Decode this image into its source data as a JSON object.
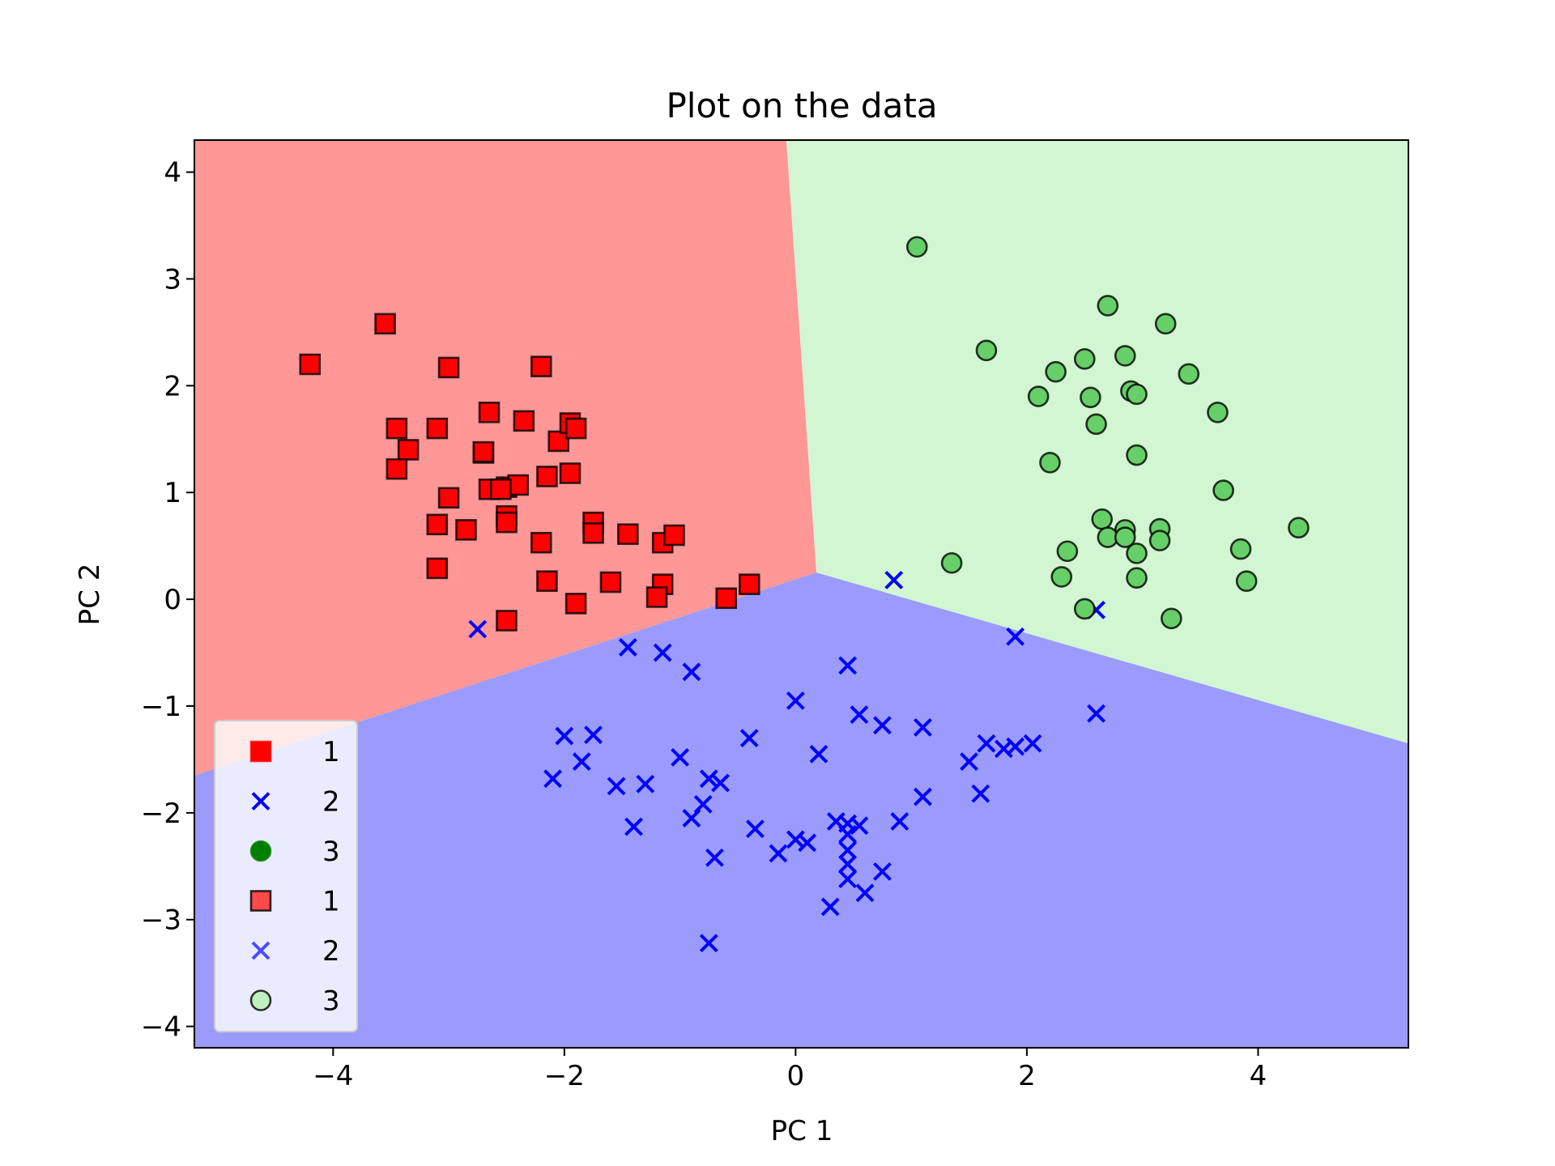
{
  "chart_data": {
    "type": "scatter",
    "title": "Plot on the data",
    "xlabel": "PC 1",
    "ylabel": "PC 2",
    "xlim": [
      -5.2,
      5.3
    ],
    "ylim": [
      -4.2,
      4.3
    ],
    "xticks": [
      -4,
      -2,
      0,
      2,
      4
    ],
    "yticks": [
      -4,
      -3,
      -2,
      -1,
      0,
      1,
      2,
      3,
      4
    ],
    "xtick_labels": [
      "−4",
      "−2",
      "0",
      "2",
      "4"
    ],
    "ytick_labels": [
      "−4",
      "−3",
      "−2",
      "−1",
      "0",
      "1",
      "2",
      "3",
      "4"
    ],
    "grid": false,
    "legend_position": "bottom-left",
    "decision_regions": {
      "boundary_point": [
        0.18,
        0.25
      ],
      "boundaries": [
        {
          "between": [
            "1",
            "2"
          ],
          "to": [
            -5.2,
            -1.65
          ]
        },
        {
          "between": [
            "1",
            "3"
          ],
          "to": [
            -0.08,
            4.3
          ]
        },
        {
          "between": [
            "2",
            "3"
          ],
          "to": [
            5.3,
            -1.35
          ]
        }
      ],
      "colors": {
        "1": "#ff9797",
        "2": "#9b9bfd",
        "3": "#d1f6d1"
      }
    },
    "series": [
      {
        "name": "1",
        "marker": "square",
        "color": "#ff0000",
        "points": [
          [
            -4.2,
            2.2
          ],
          [
            -3.55,
            2.58
          ],
          [
            -3.0,
            2.17
          ],
          [
            -2.2,
            2.18
          ],
          [
            -3.45,
            1.6
          ],
          [
            -3.1,
            1.6
          ],
          [
            -3.35,
            1.4
          ],
          [
            -3.45,
            1.22
          ],
          [
            -2.65,
            1.75
          ],
          [
            -2.35,
            1.67
          ],
          [
            -2.05,
            1.48
          ],
          [
            -1.95,
            1.65
          ],
          [
            -1.9,
            1.6
          ],
          [
            -2.7,
            1.37
          ],
          [
            -2.7,
            1.38
          ],
          [
            -2.15,
            1.15
          ],
          [
            -1.95,
            1.18
          ],
          [
            -2.65,
            1.03
          ],
          [
            -2.5,
            1.05
          ],
          [
            -2.4,
            1.07
          ],
          [
            -2.55,
            1.03
          ],
          [
            -3.0,
            0.95
          ],
          [
            -2.5,
            0.78
          ],
          [
            -2.5,
            0.72
          ],
          [
            -3.1,
            0.7
          ],
          [
            -2.85,
            0.65
          ],
          [
            -2.2,
            0.53
          ],
          [
            -1.75,
            0.72
          ],
          [
            -1.75,
            0.62
          ],
          [
            -1.45,
            0.61
          ],
          [
            -1.15,
            0.53
          ],
          [
            -1.05,
            0.6
          ],
          [
            -3.1,
            0.29
          ],
          [
            -2.15,
            0.17
          ],
          [
            -1.6,
            0.16
          ],
          [
            -1.15,
            0.14
          ],
          [
            -0.4,
            0.14
          ],
          [
            -1.2,
            0.02
          ],
          [
            -0.6,
            0.01
          ],
          [
            -1.9,
            -0.04
          ],
          [
            -2.5,
            -0.2
          ]
        ]
      },
      {
        "name": "2",
        "marker": "x",
        "color": "#0000ff",
        "points": [
          [
            -2.75,
            -0.28
          ],
          [
            0.85,
            0.18
          ],
          [
            2.6,
            -0.1
          ],
          [
            1.9,
            -0.35
          ],
          [
            -1.45,
            -0.45
          ],
          [
            -1.15,
            -0.5
          ],
          [
            -0.9,
            -0.68
          ],
          [
            0.45,
            -0.62
          ],
          [
            0.0,
            -0.95
          ],
          [
            0.55,
            -1.08
          ],
          [
            0.75,
            -1.18
          ],
          [
            1.1,
            -1.2
          ],
          [
            2.6,
            -1.07
          ],
          [
            -0.4,
            -1.3
          ],
          [
            -2.0,
            -1.28
          ],
          [
            -1.75,
            -1.27
          ],
          [
            0.2,
            -1.45
          ],
          [
            -1.0,
            -1.48
          ],
          [
            -1.85,
            -1.52
          ],
          [
            1.5,
            -1.52
          ],
          [
            1.65,
            -1.35
          ],
          [
            1.8,
            -1.4
          ],
          [
            2.05,
            -1.35
          ],
          [
            1.9,
            -1.38
          ],
          [
            -2.1,
            -1.68
          ],
          [
            -0.75,
            -1.68
          ],
          [
            -0.65,
            -1.72
          ],
          [
            -1.55,
            -1.75
          ],
          [
            -1.3,
            -1.73
          ],
          [
            -0.8,
            -1.92
          ],
          [
            1.1,
            -1.85
          ],
          [
            1.6,
            -1.82
          ],
          [
            -0.9,
            -2.05
          ],
          [
            -1.4,
            -2.13
          ],
          [
            -0.35,
            -2.15
          ],
          [
            0.35,
            -2.08
          ],
          [
            0.45,
            -2.1
          ],
          [
            0.55,
            -2.12
          ],
          [
            0.45,
            -2.2
          ],
          [
            0.9,
            -2.08
          ],
          [
            0.0,
            -2.25
          ],
          [
            0.1,
            -2.28
          ],
          [
            -0.15,
            -2.38
          ],
          [
            0.45,
            -2.35
          ],
          [
            -0.7,
            -2.42
          ],
          [
            0.45,
            -2.48
          ],
          [
            0.45,
            -2.62
          ],
          [
            0.75,
            -2.55
          ],
          [
            0.6,
            -2.75
          ],
          [
            0.3,
            -2.88
          ],
          [
            -0.75,
            -3.22
          ]
        ]
      },
      {
        "name": "3",
        "marker": "circle",
        "color": "#008000",
        "points": [
          [
            1.05,
            3.3
          ],
          [
            2.7,
            2.75
          ],
          [
            3.2,
            2.58
          ],
          [
            1.65,
            2.33
          ],
          [
            2.5,
            2.25
          ],
          [
            2.85,
            2.28
          ],
          [
            2.25,
            2.13
          ],
          [
            3.4,
            2.11
          ],
          [
            2.1,
            1.9
          ],
          [
            2.55,
            1.89
          ],
          [
            2.9,
            1.95
          ],
          [
            2.95,
            1.92
          ],
          [
            3.65,
            1.75
          ],
          [
            2.6,
            1.64
          ],
          [
            2.95,
            1.35
          ],
          [
            2.2,
            1.28
          ],
          [
            3.7,
            1.02
          ],
          [
            2.65,
            0.75
          ],
          [
            2.85,
            0.65
          ],
          [
            3.15,
            0.66
          ],
          [
            2.7,
            0.58
          ],
          [
            2.85,
            0.58
          ],
          [
            3.15,
            0.55
          ],
          [
            2.35,
            0.45
          ],
          [
            2.95,
            0.43
          ],
          [
            3.85,
            0.47
          ],
          [
            4.35,
            0.67
          ],
          [
            1.35,
            0.34
          ],
          [
            2.3,
            0.21
          ],
          [
            2.95,
            0.2
          ],
          [
            3.9,
            0.17
          ],
          [
            2.5,
            -0.09
          ],
          [
            3.25,
            -0.18
          ]
        ]
      }
    ],
    "legend": [
      {
        "label": "1",
        "marker": "square",
        "color": "#ff0000"
      },
      {
        "label": "2",
        "marker": "x",
        "color": "#0000ff"
      },
      {
        "label": "3",
        "marker": "circle",
        "color": "#008000"
      },
      {
        "label": "1",
        "marker": "square",
        "color": "#ff0000"
      },
      {
        "label": "2",
        "marker": "x",
        "color": "#0000ff"
      },
      {
        "label": "3",
        "marker": "circle",
        "color": "#008000"
      }
    ]
  }
}
